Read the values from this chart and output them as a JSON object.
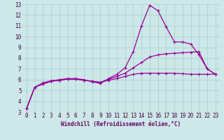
{
  "xlabel": "Windchill (Refroidissement éolien,°C)",
  "x_values": [
    0,
    1,
    2,
    3,
    4,
    5,
    6,
    7,
    8,
    9,
    10,
    11,
    12,
    13,
    14,
    15,
    16,
    17,
    18,
    19,
    20,
    21,
    22,
    23
  ],
  "line1": [
    3.3,
    5.3,
    5.7,
    5.9,
    6.0,
    6.1,
    6.1,
    6.0,
    5.8,
    5.65,
    6.1,
    6.5,
    7.1,
    8.6,
    11.0,
    12.9,
    12.4,
    10.9,
    9.5,
    9.5,
    9.3,
    8.3,
    7.0,
    6.5
  ],
  "line2": [
    3.3,
    5.3,
    5.6,
    5.85,
    5.95,
    6.05,
    6.05,
    5.95,
    5.85,
    5.75,
    6.05,
    6.3,
    6.6,
    7.1,
    7.6,
    8.1,
    8.3,
    8.4,
    8.45,
    8.5,
    8.55,
    8.6,
    7.0,
    6.5
  ],
  "line3": [
    3.3,
    5.3,
    5.6,
    5.85,
    5.95,
    6.05,
    6.05,
    5.95,
    5.85,
    5.75,
    5.95,
    6.1,
    6.3,
    6.5,
    6.6,
    6.6,
    6.6,
    6.6,
    6.6,
    6.55,
    6.5,
    6.5,
    6.5,
    6.5
  ],
  "line_color": "#990099",
  "bg_color": "#cce8e8",
  "grid_color": "#aacccc",
  "ylim": [
    3,
    13
  ],
  "xlim": [
    -0.5,
    23.5
  ],
  "yticks": [
    3,
    4,
    5,
    6,
    7,
    8,
    9,
    10,
    11,
    12,
    13
  ],
  "xticks": [
    0,
    1,
    2,
    3,
    4,
    5,
    6,
    7,
    8,
    9,
    10,
    11,
    12,
    13,
    14,
    15,
    16,
    17,
    18,
    19,
    20,
    21,
    22,
    23
  ],
  "tick_fontsize": 5.5,
  "xlabel_fontsize": 5.5
}
